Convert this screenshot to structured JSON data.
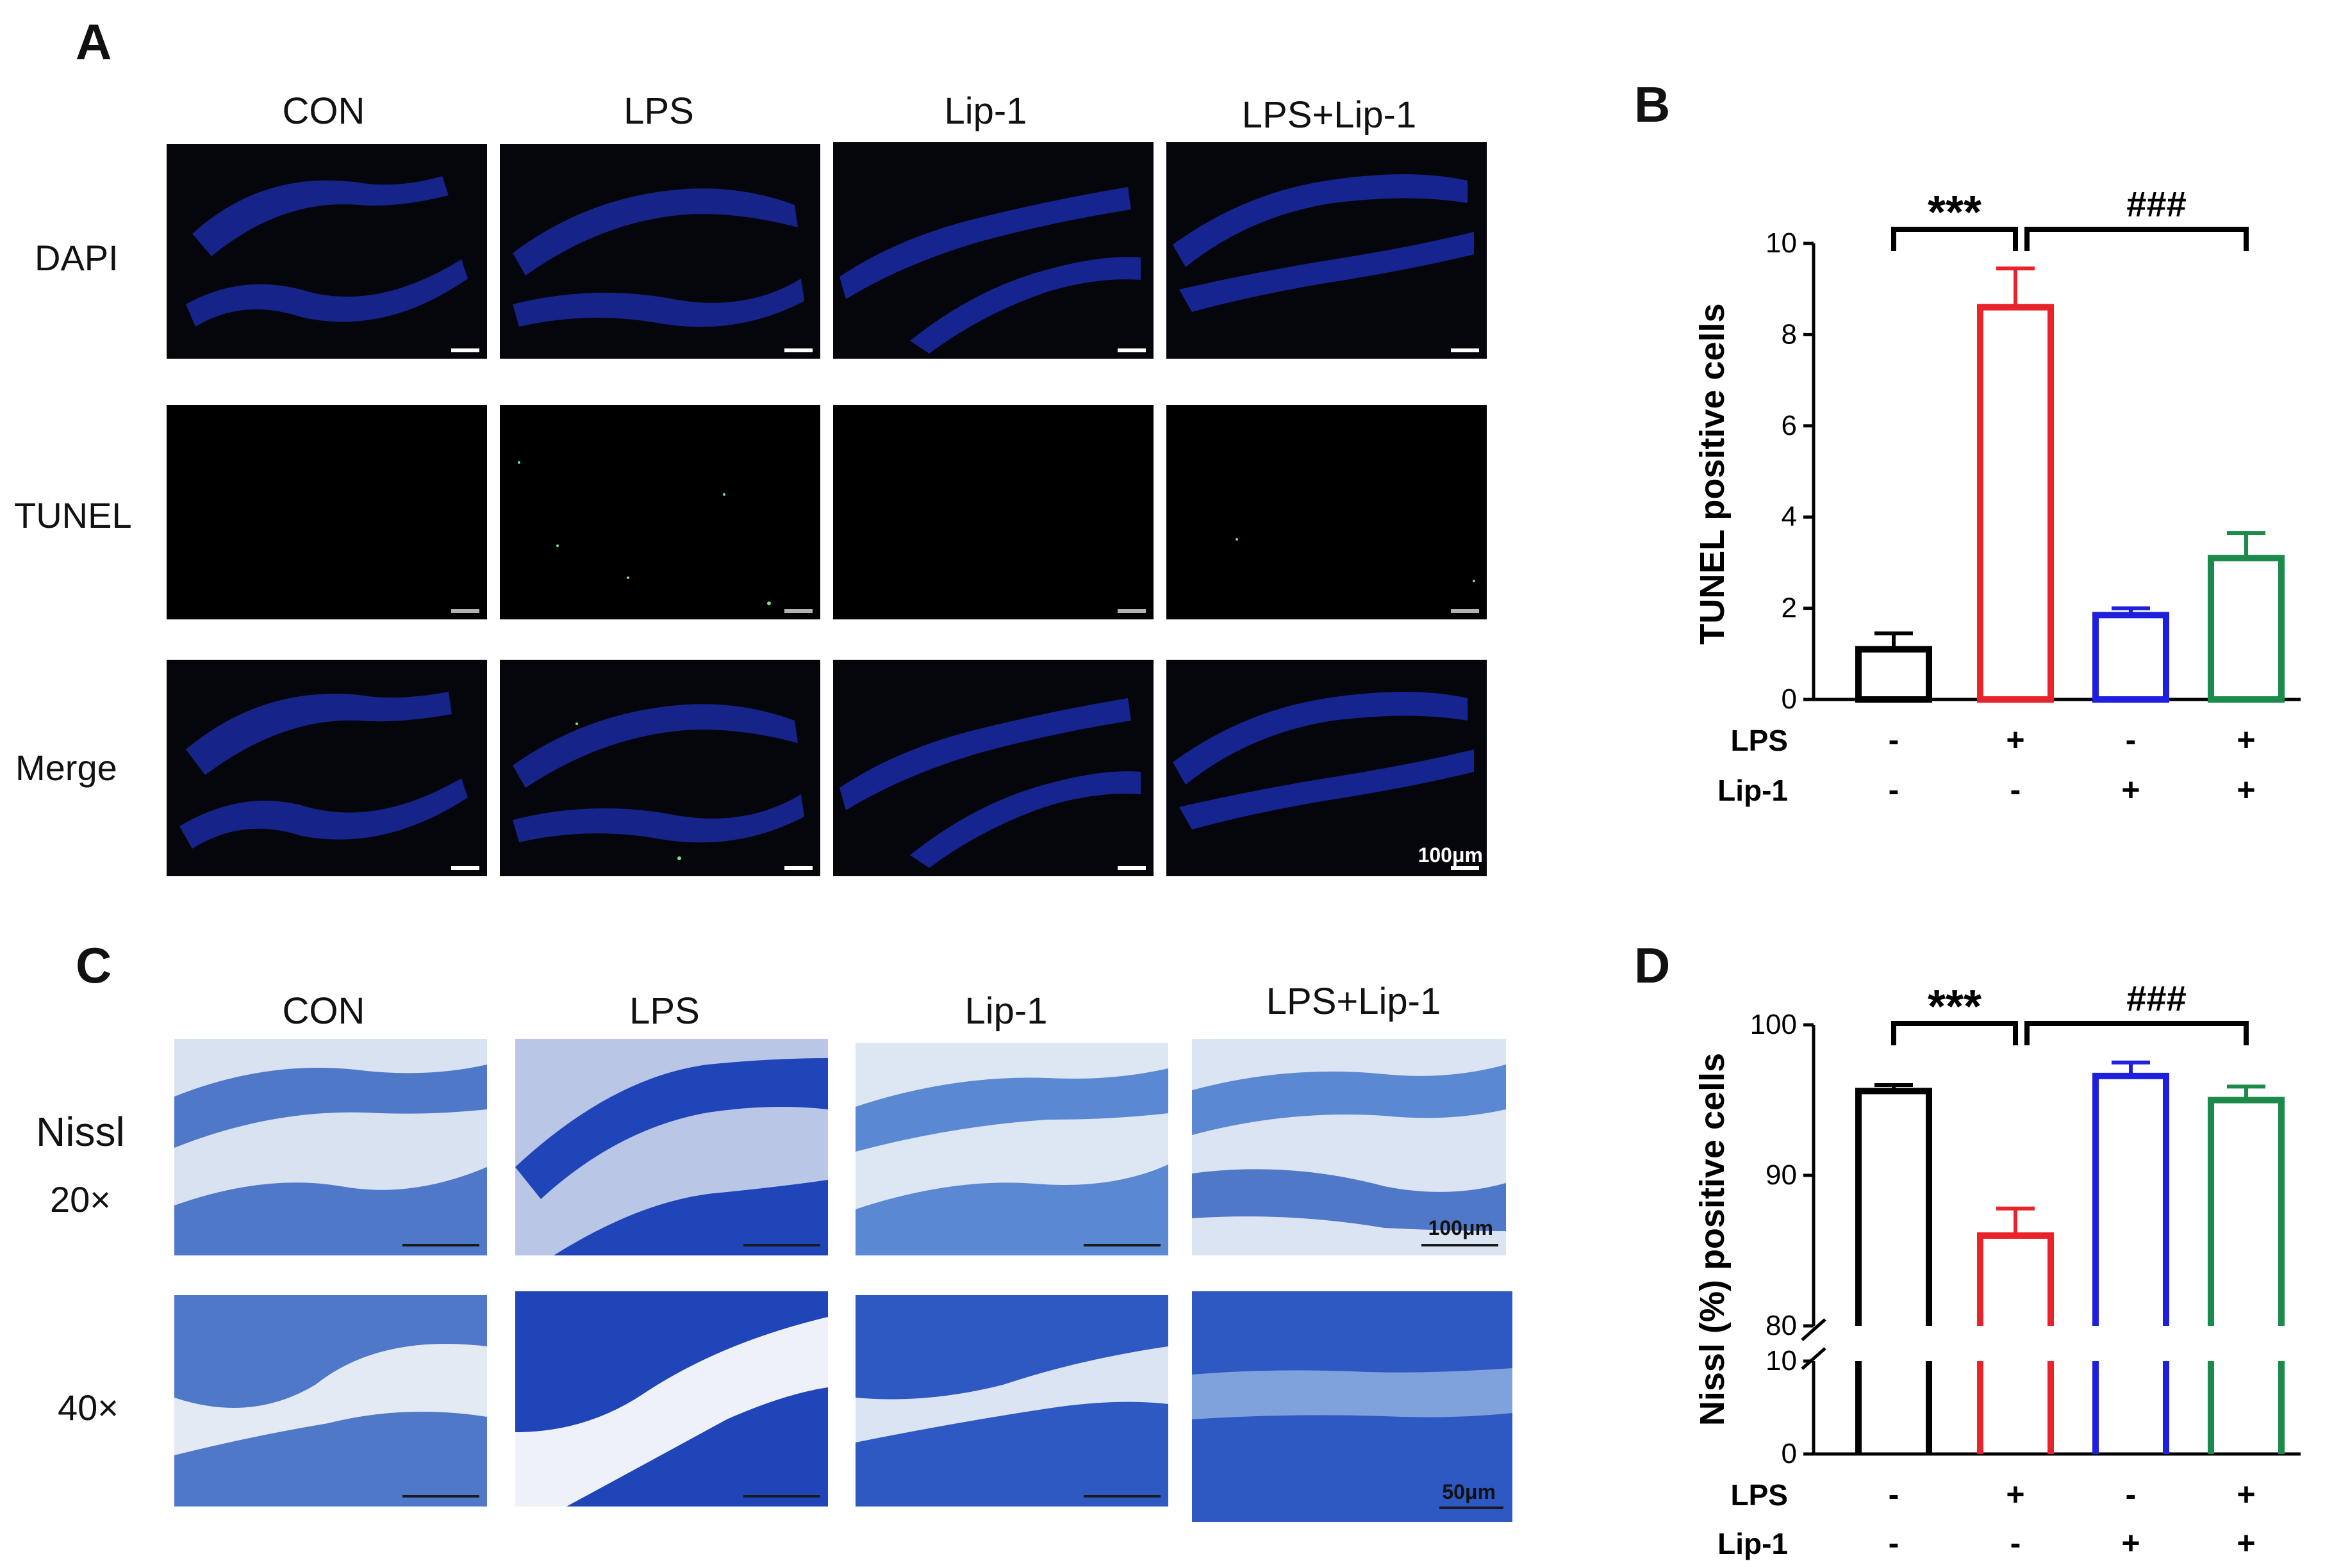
{
  "panels": {
    "a": "A",
    "b": "B",
    "c": "C",
    "d": "D"
  },
  "panel_a": {
    "columns": [
      "CON",
      "LPS",
      "Lip-1",
      "LPS+Lip-1"
    ],
    "rows": [
      "DAPI",
      "TUNEL",
      "Merge"
    ],
    "scale_label": "100μm"
  },
  "panel_c": {
    "columns": [
      "CON",
      "LPS",
      "Lip-1",
      "LPS+Lip-1"
    ],
    "row_title": "Nissl",
    "rows": [
      "20×",
      "40×"
    ],
    "scale_label_20x": "100μm",
    "scale_label_40x": "50μm"
  },
  "colors": {
    "con": "#000000",
    "lps": "#e8232a",
    "lip1": "#1f1fe0",
    "lps_lip1": "#1c8a4a"
  },
  "chart_data": [
    {
      "type": "bar",
      "panel": "B",
      "categories": [
        "CON",
        "LPS",
        "Lip-1",
        "LPS+Lip-1"
      ],
      "values": [
        1.1,
        8.6,
        1.85,
        3.1
      ],
      "errors": [
        0.35,
        0.85,
        0.15,
        0.55
      ],
      "ylabel": "TUNEL positive cells",
      "ylim": [
        0,
        10
      ],
      "yticks": [
        "0",
        "2",
        "4",
        "6",
        "8",
        "10"
      ],
      "treatment_rows": [
        {
          "label": "LPS",
          "values": [
            "-",
            "+",
            "-",
            "+"
          ]
        },
        {
          "label": "Lip-1",
          "values": [
            "-",
            "-",
            "+",
            "+"
          ]
        }
      ],
      "annotations": [
        "***",
        "###"
      ]
    },
    {
      "type": "bar",
      "panel": "D",
      "categories": [
        "CON",
        "LPS",
        "Lip-1",
        "LPS+Lip-1"
      ],
      "values": [
        95.6,
        86.0,
        96.6,
        95.0
      ],
      "errors": [
        0.4,
        1.8,
        0.9,
        0.9
      ],
      "ylabel": "Nissl (%) positive cells",
      "ylim": [
        0,
        100
      ],
      "axis_break": [
        10,
        80
      ],
      "yticks": [
        "0",
        "10",
        "80",
        "90",
        "100"
      ],
      "treatment_rows": [
        {
          "label": "LPS",
          "values": [
            "-",
            "+",
            "-",
            "+"
          ]
        },
        {
          "label": "Lip-1",
          "values": [
            "-",
            "-",
            "+",
            "+"
          ]
        }
      ],
      "annotations": [
        "***",
        "###"
      ]
    }
  ]
}
